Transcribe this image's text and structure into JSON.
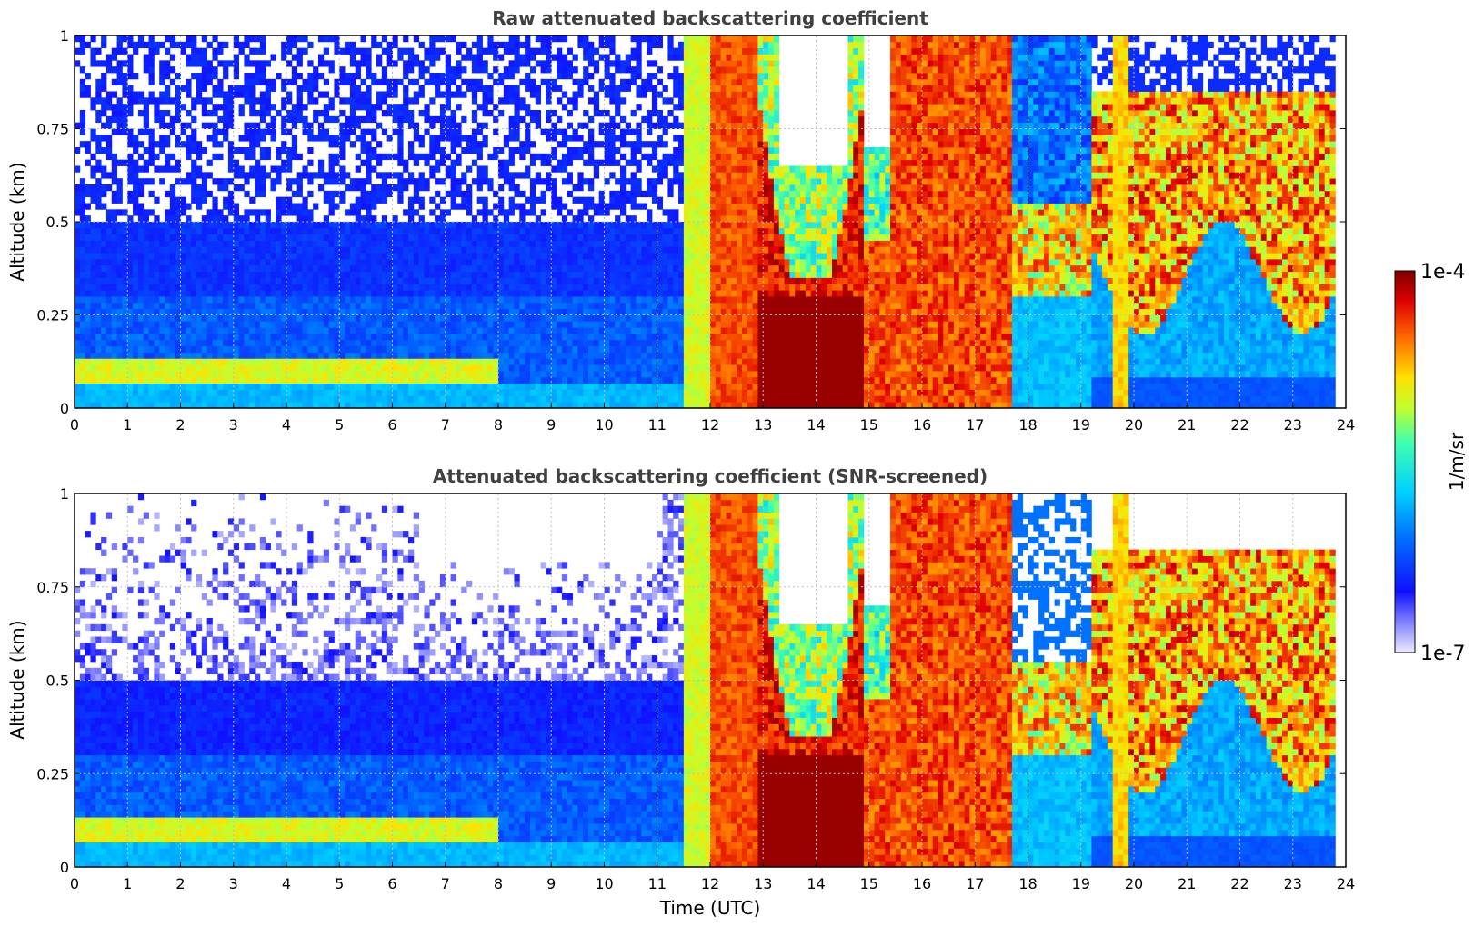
{
  "chart_data": [
    {
      "type": "heatmap",
      "title": "Raw attenuated backscattering coefficient",
      "xlabel": "",
      "ylabel": "Altitude (km)",
      "xlim": [
        0,
        24
      ],
      "ylim": [
        0,
        1
      ],
      "xticks": [
        "0",
        "1",
        "2",
        "3",
        "4",
        "5",
        "6",
        "7",
        "8",
        "9",
        "10",
        "11",
        "12",
        "13",
        "14",
        "15",
        "16",
        "17",
        "18",
        "19",
        "20",
        "21",
        "22",
        "23",
        "24"
      ],
      "yticks": [
        "0",
        "0.25",
        "0.5",
        "0.75",
        "1"
      ],
      "grid": true,
      "screened": false
    },
    {
      "type": "heatmap",
      "title": "Attenuated backscattering coefficient (SNR-screened)",
      "xlabel": "Time (UTC)",
      "ylabel": "Altitude (km)",
      "xlim": [
        0,
        24
      ],
      "ylim": [
        0,
        1
      ],
      "xticks": [
        "0",
        "1",
        "2",
        "3",
        "4",
        "5",
        "6",
        "7",
        "8",
        "9",
        "10",
        "11",
        "12",
        "13",
        "14",
        "15",
        "16",
        "17",
        "18",
        "19",
        "20",
        "21",
        "22",
        "23",
        "24"
      ],
      "yticks": [
        "0",
        "0.25",
        "0.5",
        "0.75",
        "1"
      ],
      "grid": true,
      "screened": true
    }
  ],
  "colorbar": {
    "label": "1/m/sr",
    "max_label": "1e-4",
    "min_label": "1e-7",
    "colormap": "jet"
  },
  "colors": {
    "title": "#404040",
    "grid": "#c0c0c0"
  }
}
